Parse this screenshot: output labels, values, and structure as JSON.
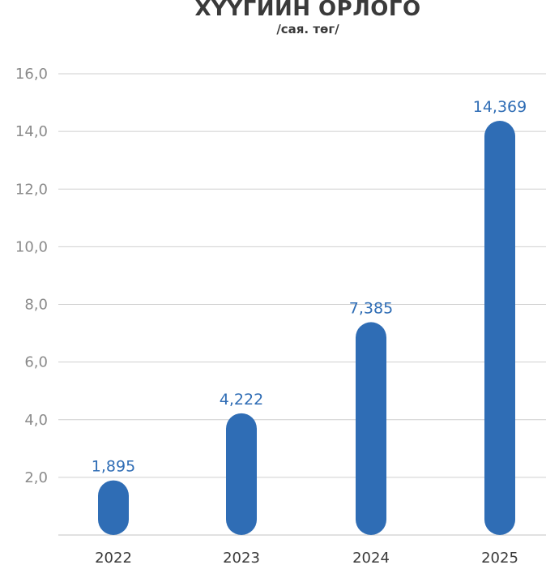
{
  "chart_data": {
    "type": "bar",
    "title": "ХҮҮГИЙН ОРЛОГО",
    "subtitle": "/сая. төг/",
    "categories": [
      "2022",
      "2023",
      "2024",
      "2025"
    ],
    "values": [
      1.895,
      4.222,
      7.385,
      14.369
    ],
    "data_labels": [
      "1,895",
      "4,222",
      "7,385",
      "14,369"
    ],
    "y_ticks": [
      "2,0",
      "4,0",
      "6,0",
      "8,0",
      "10,0",
      "12,0",
      "14,0",
      "16,0"
    ],
    "ylim": [
      0,
      16
    ],
    "grid": true,
    "bar_color": "#2f6db5",
    "label_color": "#2f6db5"
  }
}
